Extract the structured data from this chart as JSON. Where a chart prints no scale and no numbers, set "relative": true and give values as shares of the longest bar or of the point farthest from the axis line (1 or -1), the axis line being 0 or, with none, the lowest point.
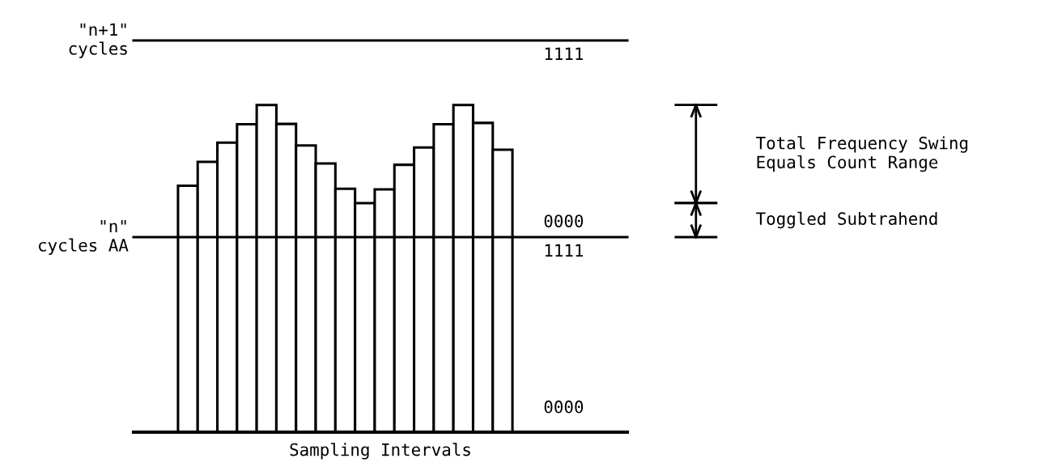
{
  "chart_data": {
    "type": "bar",
    "relative": true,
    "xlabel": "Sampling Intervals",
    "categories": [
      null,
      null,
      null,
      null,
      null,
      null,
      null,
      null,
      null,
      null,
      null,
      null,
      null,
      null,
      null,
      null,
      null
    ],
    "values": [
      0.753,
      0.826,
      0.885,
      0.941,
      1.0,
      0.942,
      0.876,
      0.821,
      0.744,
      0.7,
      0.742,
      0.817,
      0.87,
      0.941,
      1.0,
      0.945,
      0.863
    ],
    "color": "#ffffff",
    "ref_lines": [
      {
        "axis": "y",
        "value": 1.197,
        "label": "\"n+1\"\ncycles",
        "color": "#000000"
      },
      {
        "axis": "y",
        "value": 0.596,
        "label": "\"n\"\ncycles AA",
        "color": "#000000"
      }
    ],
    "annotations": [
      {
        "text": "1111",
        "y": 1.197
      },
      {
        "text": "0000",
        "y": 0.596
      },
      {
        "text": "1111",
        "y": 0.596
      },
      "0000",
      "Total Frequency Swing\nEquals Count Range",
      "Toggled Subtrahend"
    ]
  }
}
